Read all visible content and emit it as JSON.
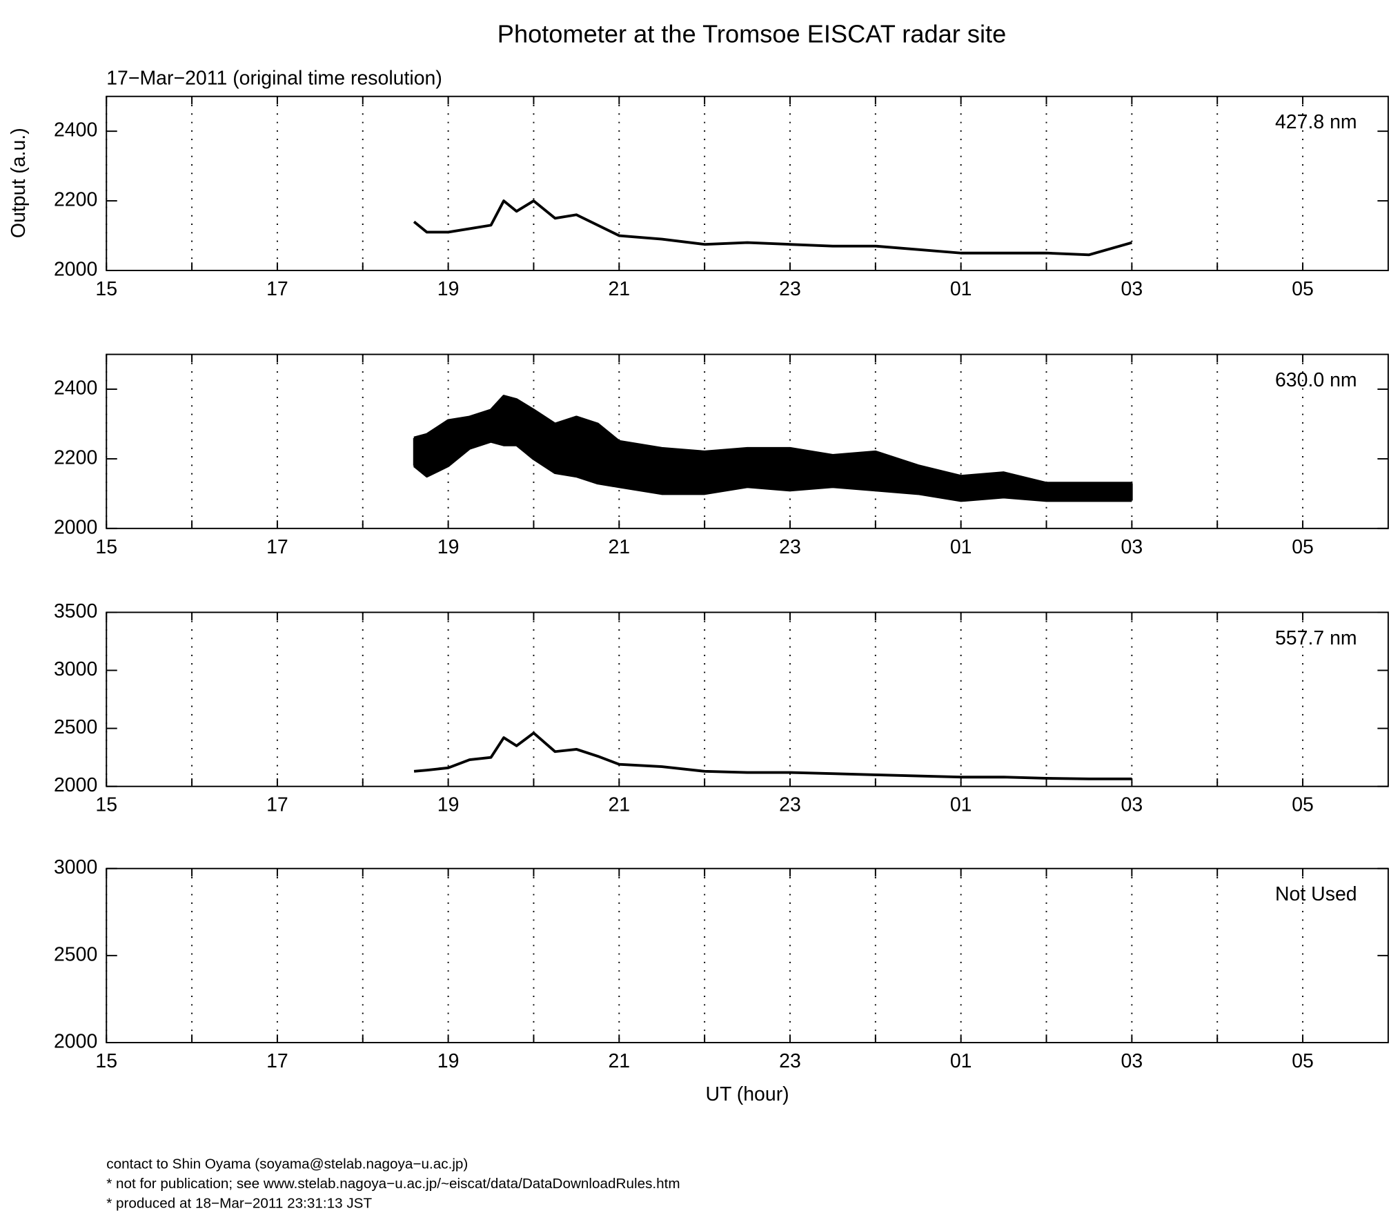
{
  "chart_data": [
    {
      "type": "line",
      "title": "Photometer at the Tromsoe EISCAT radar site",
      "subtitle": "17−Mar−2011 (original time resolution)",
      "ylabel": "Output (a.u.)",
      "label": "427.8 nm",
      "x": [
        18.6,
        18.75,
        19,
        19.25,
        19.5,
        19.65,
        19.8,
        20,
        20.25,
        20.5,
        20.75,
        21,
        21.5,
        22,
        22.5,
        23,
        23.5,
        24,
        24.5,
        25,
        25.5,
        26,
        26.5,
        27
      ],
      "series": [
        {
          "color": "#000000",
          "values": [
            2140,
            2110,
            2110,
            2120,
            2130,
            2200,
            2170,
            2200,
            2150,
            2160,
            2130,
            2100,
            2090,
            2075,
            2080,
            2075,
            2070,
            2070,
            2060,
            2050,
            2050,
            2050,
            2045,
            2080
          ]
        }
      ],
      "xlim": [
        15,
        30
      ],
      "xticks": [
        15,
        17,
        19,
        21,
        23,
        {
          "value": 25,
          "label": "01"
        },
        {
          "value": 27,
          "label": "03"
        },
        {
          "value": 29,
          "label": "05"
        }
      ],
      "xminorticks": [
        16,
        18,
        20,
        22,
        24,
        26,
        28
      ],
      "ylim": [
        2000,
        2500
      ],
      "yticks": [
        2000,
        2200,
        2400
      ],
      "grid": true
    },
    {
      "type": "line",
      "label": "630.0 nm",
      "fill_between": true,
      "x": [
        18.6,
        18.75,
        19,
        19.25,
        19.5,
        19.65,
        19.8,
        20,
        20.25,
        20.5,
        20.75,
        21,
        21.5,
        22,
        22.5,
        23,
        23.5,
        24,
        24.5,
        25,
        25.5,
        26,
        26.5,
        27
      ],
      "series": [
        {
          "color": "#000000",
          "values": [
            2180,
            2150,
            2180,
            2230,
            2250,
            2240,
            2240,
            2200,
            2160,
            2150,
            2130,
            2120,
            2100,
            2100,
            2120,
            2110,
            2120,
            2110,
            2100,
            2080,
            2090,
            2080,
            2080,
            2080
          ]
        },
        {
          "color": "#000000",
          "values": [
            2260,
            2270,
            2310,
            2320,
            2340,
            2380,
            2370,
            2340,
            2300,
            2320,
            2300,
            2250,
            2230,
            2220,
            2230,
            2230,
            2210,
            2220,
            2180,
            2150,
            2160,
            2130,
            2130,
            2130
          ]
        }
      ],
      "xlim": [
        15,
        30
      ],
      "xticks": [
        15,
        17,
        19,
        21,
        23,
        {
          "value": 25,
          "label": "01"
        },
        {
          "value": 27,
          "label": "03"
        },
        {
          "value": 29,
          "label": "05"
        }
      ],
      "xminorticks": [
        16,
        18,
        20,
        22,
        24,
        26,
        28
      ],
      "ylim": [
        2000,
        2500
      ],
      "yticks": [
        2000,
        2200,
        2400
      ],
      "grid": true
    },
    {
      "type": "line",
      "label": "557.7 nm",
      "x": [
        18.6,
        18.75,
        19,
        19.25,
        19.5,
        19.65,
        19.8,
        20,
        20.25,
        20.5,
        20.75,
        21,
        21.5,
        22,
        22.5,
        23,
        23.5,
        24,
        24.5,
        25,
        25.5,
        26,
        26.5,
        27
      ],
      "series": [
        {
          "color": "#000000",
          "values": [
            2130,
            2140,
            2160,
            2230,
            2250,
            2420,
            2350,
            2460,
            2300,
            2320,
            2260,
            2190,
            2170,
            2130,
            2120,
            2120,
            2110,
            2100,
            2090,
            2080,
            2080,
            2070,
            2065,
            2065
          ]
        }
      ],
      "xlim": [
        15,
        30
      ],
      "xticks": [
        15,
        17,
        19,
        21,
        23,
        {
          "value": 25,
          "label": "01"
        },
        {
          "value": 27,
          "label": "03"
        },
        {
          "value": 29,
          "label": "05"
        }
      ],
      "xminorticks": [
        16,
        18,
        20,
        22,
        24,
        26,
        28
      ],
      "ylim": [
        2000,
        3500
      ],
      "yticks": [
        2000,
        2500,
        3000,
        3500
      ],
      "grid": true
    },
    {
      "type": "line",
      "label": "Not Used",
      "xlabel": "UT (hour)",
      "xlim": [
        15,
        30
      ],
      "xticks": [
        15,
        17,
        19,
        21,
        23,
        {
          "value": 25,
          "label": "01"
        },
        {
          "value": 27,
          "label": "03"
        },
        {
          "value": 29,
          "label": "05"
        }
      ],
      "xminorticks": [
        16,
        18,
        20,
        22,
        24,
        26,
        28
      ],
      "ylim": [
        2000,
        3000
      ],
      "yticks": [
        2000,
        2500,
        3000
      ],
      "grid": true
    }
  ],
  "footer": [
    "contact to Shin Oyama (soyama@stelab.nagoya−u.ac.jp)",
    "* not for publication; see www.stelab.nagoya−u.ac.jp/~eiscat/data/DataDownloadRules.htm",
    "* produced at 18−Mar−2011 23:31:13 JST"
  ]
}
